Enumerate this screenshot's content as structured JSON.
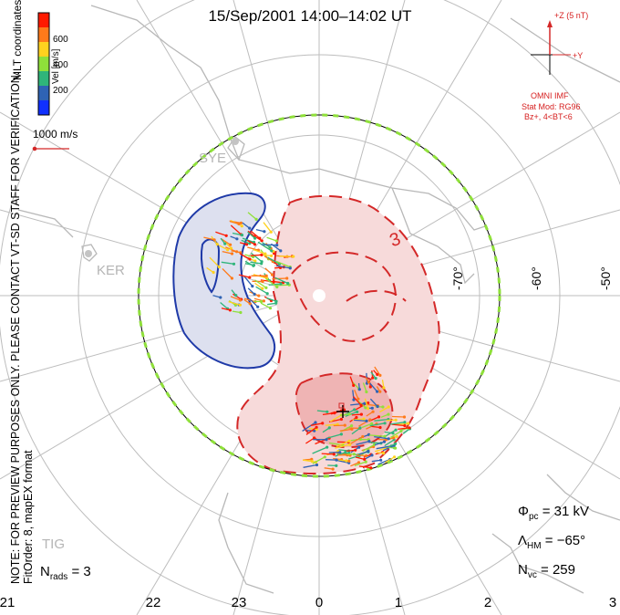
{
  "title": "15/Sep/2001 14:00–14:02 UT",
  "colorbar": {
    "label": "Vel [m/s]",
    "ticks": [
      "600",
      "400",
      "200"
    ],
    "colors": [
      "#ff1a00",
      "#ff7a1a",
      "#ffd21f",
      "#8fe03a",
      "#2fb57a",
      "#2f63b4",
      "#1030ff"
    ]
  },
  "coord_label": "MLT coordinates",
  "vertical_note": {
    "line1": "NOTE: FOR PREVIEW PURPOSES ONLY. PLEASE CONTACT VT-SD STAFF FOR VERIFICATION.",
    "line2": "FitOrder: 8, mapEX format"
  },
  "scale_label": "1000 m/s",
  "imf": {
    "z_label": "+Z (5 nT)",
    "y_label": "+Y",
    "omni": "OMNI IMF",
    "stat_mod": "Stat Mod: RG96",
    "condition": "Bz+, 4<BT<6",
    "bz_nt": 5,
    "by_nt": 0
  },
  "stations": [
    "SYE",
    "KER",
    "TIG"
  ],
  "latitude_labels": [
    "-70°",
    "-60°",
    "-50°"
  ],
  "contour_label": "3",
  "mlt_labels": [
    "21",
    "22",
    "23",
    "0",
    "1",
    "2",
    "3"
  ],
  "stats": {
    "phi_pc_symbol": "Φ",
    "phi_pc_sub": "pc",
    "phi_pc_value": "= 31 kV",
    "lambda_hm_symbol": "Λ",
    "lambda_hm_sub": "HM",
    "lambda_hm_value": "= −65°",
    "n_vc_symbol": "N",
    "n_vc_sub": "vc",
    "n_vc_value": "= 259",
    "n_rads_symbol": "N",
    "n_rads_sub": "rads",
    "n_rads_value": "= 3"
  },
  "colors": {
    "negative_cell_fill": "#dde0ef",
    "negative_contour": "#1f3aa8",
    "positive_cell_fill": "#f7dada",
    "positive_core_fill": "#efb4b4",
    "positive_contour": "#d42828",
    "grid": "#bdbdbd",
    "coastline": "#b8b8b8"
  }
}
